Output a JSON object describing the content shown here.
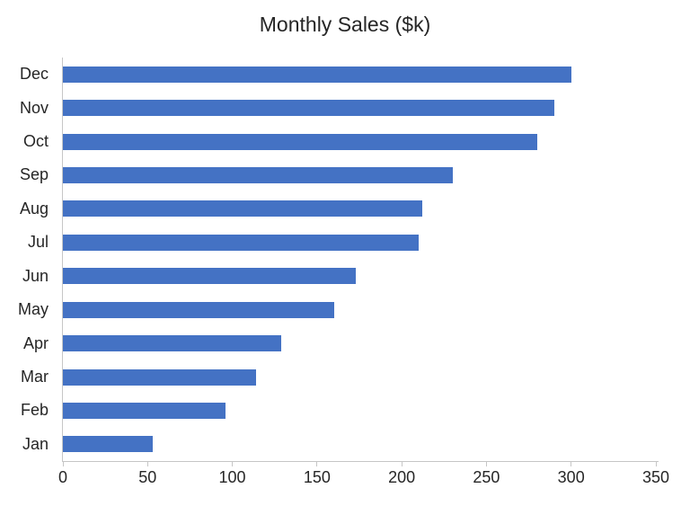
{
  "chart_data": {
    "type": "bar",
    "orientation": "horizontal",
    "title": "Monthly Sales ($k)",
    "categories": [
      "Jan",
      "Feb",
      "Mar",
      "Apr",
      "May",
      "Jun",
      "Jul",
      "Aug",
      "Sep",
      "Oct",
      "Nov",
      "Dec"
    ],
    "values": [
      53,
      96,
      114,
      129,
      160,
      173,
      210,
      212,
      230,
      280,
      290,
      300
    ],
    "display_order_top_to_bottom": [
      "Dec",
      "Nov",
      "Oct",
      "Sep",
      "Aug",
      "Jul",
      "Jun",
      "May",
      "Apr",
      "Mar",
      "Feb",
      "Jan"
    ],
    "xlabel": "",
    "ylabel": "",
    "xlim": [
      0,
      350
    ],
    "x_ticks": [
      0,
      50,
      100,
      150,
      200,
      250,
      300,
      350
    ],
    "gridlines": false,
    "legend": false,
    "bar_color": "#4472C4",
    "axis_color": "#C6C6C6",
    "text_color": "#262626"
  }
}
